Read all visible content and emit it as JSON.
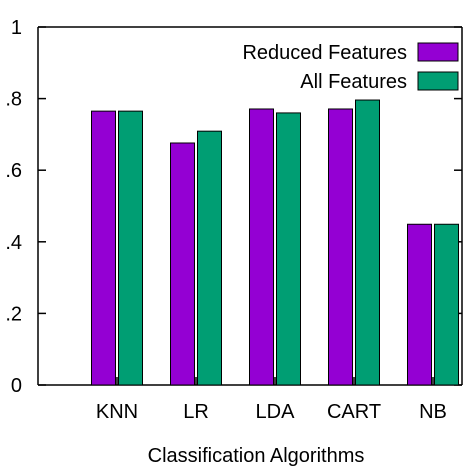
{
  "chart_data": {
    "type": "bar",
    "categories": [
      "KNN",
      "LR",
      "LDA",
      "CART",
      "NB"
    ],
    "series": [
      {
        "name": "Reduced Features",
        "color": "#9400d3",
        "values": [
          0.765,
          0.676,
          0.771,
          0.771,
          0.449
        ]
      },
      {
        "name": "All Features",
        "color": "#009e73",
        "values": [
          0.765,
          0.709,
          0.76,
          0.796,
          0.449
        ]
      }
    ],
    "title": "",
    "xlabel": "Classification Algorithms",
    "ylabel": "",
    "ylim": [
      0,
      1
    ],
    "yticks": [
      0,
      0.2,
      0.4,
      0.6,
      0.8,
      1
    ],
    "ytick_labels": [
      "0",
      ".2",
      ".4",
      ".6",
      ".8",
      "1"
    ],
    "grid": false,
    "legend_position": "top-right"
  }
}
